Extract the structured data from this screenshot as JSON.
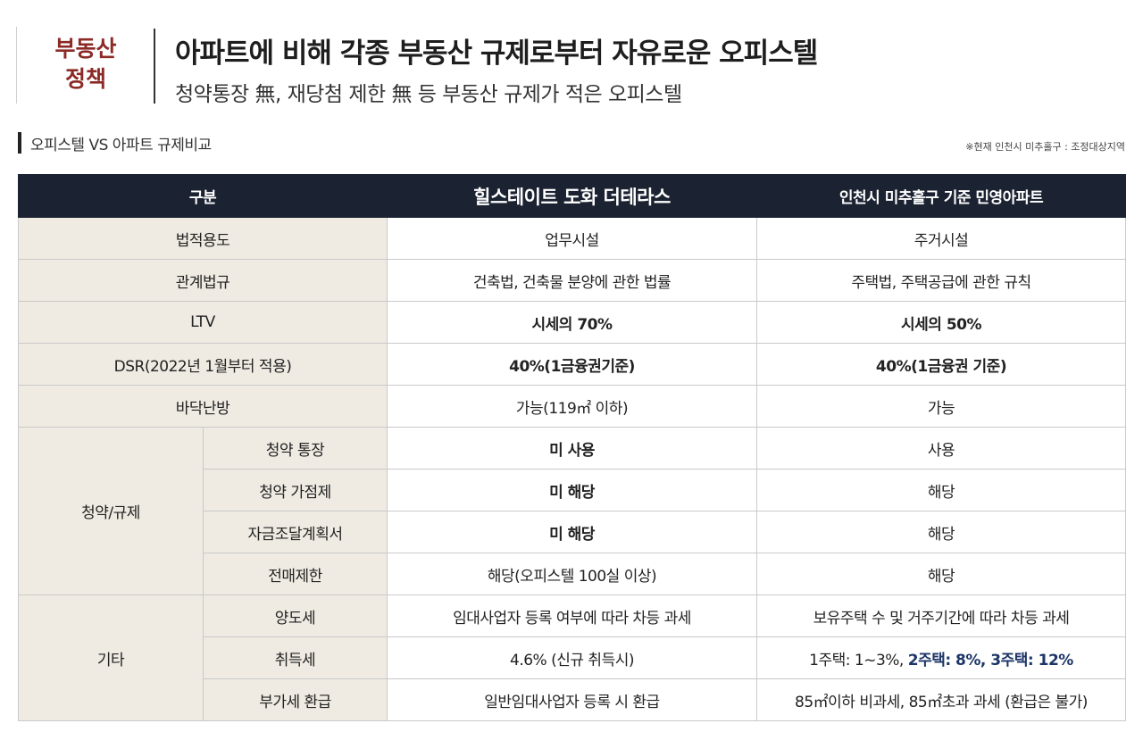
{
  "header": {
    "category_line1": "부동산",
    "category_line2": "정책",
    "title": "아파트에 비해 각종 부동산 규제로부터 자유로운 오피스텔",
    "subtitle": "청약통장 無, 재당첨 제한 無 등 부동산 규제가 적은 오피스텔"
  },
  "section": {
    "title": "오피스텔 VS 아파트 규제비교",
    "note": "※현재 인천시 미추홀구 : 조정대상지역"
  },
  "table": {
    "headers": [
      "구분",
      "힐스테이트 도화 더테라스",
      "인천시 미추홀구 기준 민영아파트"
    ],
    "rows": {
      "usage": {
        "label": "법적용도",
        "a": "업무시설",
        "b": "주거시설"
      },
      "law": {
        "label": "관계법규",
        "a": "건축법, 건축물 분양에 관한 법률",
        "b": "주택법, 주택공급에 관한 규칙"
      },
      "ltv": {
        "label": "LTV",
        "a": "시세의 70%",
        "b": "시세의 50%"
      },
      "dsr": {
        "label": "DSR(2022년 1월부터 적용)",
        "a": "40%(1금융권기준)",
        "b": "40%(1금융권 기준)"
      },
      "floor": {
        "label": "바닥난방",
        "a": "가능(119㎡ 이하)",
        "b": "가능"
      }
    },
    "group_subscription": {
      "label": "청약/규제",
      "rows": [
        {
          "label": "청약 통장",
          "a": "미 사용",
          "b": "사용"
        },
        {
          "label": "청약 가점제",
          "a": "미 해당",
          "b": "해당"
        },
        {
          "label": "자금조달계획서",
          "a": "미 해당",
          "b": "해당"
        },
        {
          "label": "전매제한",
          "a": "해당(오피스텔 100실 이상)",
          "b": "해당"
        }
      ]
    },
    "group_other": {
      "label": "기타",
      "rows": [
        {
          "label": "양도세",
          "a": "임대사업자 등록 여부에 따라 차등 과세",
          "b": "보유주택 수 및 거주기간에 따라 차등 과세"
        },
        {
          "label": "취득세",
          "a": "4.6% (신규 취득시)",
          "b_plain": "1주택: 1~3%, ",
          "b_bold": "2주택: 8%, 3주택: 12%"
        },
        {
          "label": "부가세 환급",
          "a": "일반임대사업자 등록 시 환급",
          "b": "85㎡이하 비과세, 85㎡초과 과세 (환급은 불가)"
        }
      ]
    }
  },
  "colors": {
    "brand_red": "#8b2a26",
    "header_navy": "#1b2231",
    "label_beige": "#efebe2",
    "highlight_red": "#b0382d",
    "highlight_navy": "#1c3567"
  }
}
